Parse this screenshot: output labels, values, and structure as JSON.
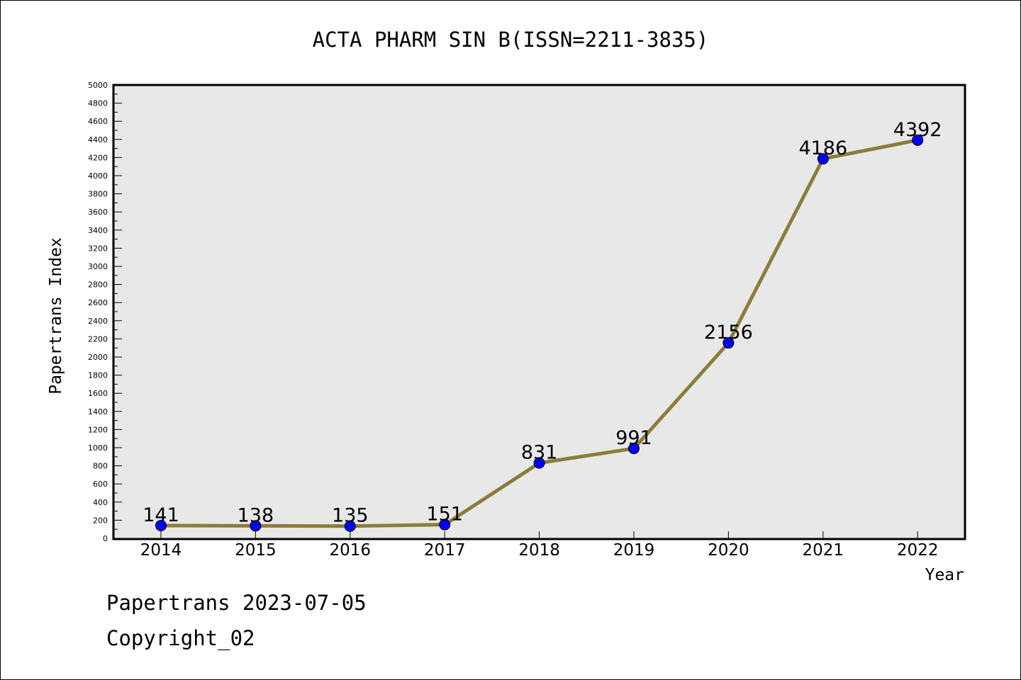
{
  "chart_data": {
    "type": "line",
    "title": "ACTA PHARM SIN B(ISSN=2211-3835)",
    "xlabel": "Year",
    "ylabel": "Papertrans Index",
    "categories": [
      "2014",
      "2015",
      "2016",
      "2017",
      "2018",
      "2019",
      "2020",
      "2021",
      "2022"
    ],
    "series": [
      {
        "values": [
          141,
          138,
          135,
          151,
          831,
          991,
          2156,
          4186,
          4392
        ]
      }
    ],
    "data_labels": [
      "141",
      "138",
      "135",
      "151",
      "831",
      "991",
      "2156",
      "4186",
      "4392"
    ],
    "ylim": [
      0,
      5000
    ],
    "ytick_step": 200,
    "yminor_step": 100,
    "yticks": [
      "0",
      "200",
      "400",
      "600",
      "800",
      "1000",
      "1200",
      "1400",
      "1600",
      "1800",
      "2000",
      "2200",
      "2400",
      "2600",
      "2800",
      "3000",
      "3200",
      "3400",
      "3600",
      "3800",
      "4000",
      "4200",
      "4400",
      "4600",
      "4800",
      "5000"
    ],
    "grid": false,
    "legend": "none",
    "colors": {
      "line": "#8B7D3A",
      "marker": "#0000FF",
      "plot_background": "#E8E8E8"
    }
  },
  "footer": {
    "source": "Papertrans 2023-07-05",
    "copyright": "Copyright_02"
  }
}
